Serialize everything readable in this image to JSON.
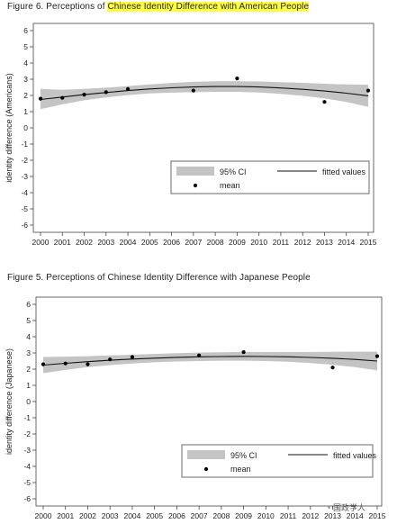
{
  "figures": [
    {
      "label": "Figure 6.",
      "title_plain": "Perceptions of",
      "title_highlight": "Chinese Identity Difference with American People",
      "chart_data": {
        "type": "scatter",
        "title": "Figure 6. Perceptions of Chinese Identity Difference with American People",
        "xlabel": "",
        "ylabel": "identity difference (Americans)",
        "xlim": [
          2000,
          2015
        ],
        "ylim": [
          -6,
          6
        ],
        "x_ticks": [
          2000,
          2001,
          2002,
          2003,
          2004,
          2005,
          2006,
          2007,
          2008,
          2009,
          2010,
          2011,
          2012,
          2013,
          2014,
          2015
        ],
        "y_ticks": [
          -6,
          -5,
          -4,
          -3,
          -2,
          -1,
          0,
          1,
          2,
          3,
          4,
          5,
          6
        ],
        "series": [
          {
            "name": "mean",
            "kind": "points",
            "x": [
              2000,
              2001,
              2002,
              2003,
              2004,
              2007,
              2009,
              2013,
              2015
            ],
            "y": [
              1.8,
              1.85,
              2.05,
              2.2,
              2.4,
              2.3,
              3.05,
              1.6,
              2.3
            ]
          },
          {
            "name": "fitted values",
            "kind": "line",
            "x": [
              2000,
              2001,
              2002,
              2003,
              2004,
              2005,
              2006,
              2007,
              2008,
              2009,
              2010,
              2011,
              2012,
              2013,
              2014,
              2015
            ],
            "y": [
              1.75,
              1.9,
              2.05,
              2.18,
              2.3,
              2.4,
              2.47,
              2.52,
              2.55,
              2.55,
              2.52,
              2.46,
              2.38,
              2.27,
              2.14,
              1.98
            ]
          },
          {
            "name": "95% CI",
            "kind": "band",
            "x": [
              2000,
              2001,
              2002,
              2003,
              2004,
              2005,
              2006,
              2007,
              2008,
              2009,
              2010,
              2011,
              2012,
              2013,
              2014,
              2015
            ],
            "lower": [
              1.15,
              1.45,
              1.7,
              1.88,
              2.02,
              2.12,
              2.17,
              2.2,
              2.22,
              2.22,
              2.18,
              2.1,
              1.98,
              1.82,
              1.6,
              1.3
            ],
            "upper": [
              2.4,
              2.35,
              2.4,
              2.48,
              2.58,
              2.68,
              2.77,
              2.84,
              2.88,
              2.88,
              2.86,
              2.82,
              2.78,
              2.72,
              2.68,
              2.66
            ]
          }
        ],
        "legend": {
          "position": "bottom-right",
          "items": [
            {
              "label": "95% CI",
              "kind": "band"
            },
            {
              "label": "fitted values",
              "kind": "line"
            },
            {
              "label": "mean",
              "kind": "point"
            }
          ]
        },
        "grid": false,
        "colors": {
          "band": "#c4c4c4",
          "line": "#111111",
          "point": "#000000"
        }
      }
    },
    {
      "label": "Figure 5.",
      "title_plain": "Perceptions of Chinese Identity Difference with Japanese People",
      "title_highlight": "",
      "chart_data": {
        "type": "scatter",
        "title": "Figure 5. Perceptions of Chinese Identity Difference with Japanese People",
        "xlabel": "",
        "ylabel": "identity difference (Japanese)",
        "xlim": [
          2000,
          2015
        ],
        "ylim": [
          -6,
          6
        ],
        "x_ticks": [
          2000,
          2001,
          2002,
          2003,
          2004,
          2005,
          2006,
          2007,
          2008,
          2009,
          2010,
          2011,
          2012,
          2013,
          2014,
          2015
        ],
        "y_ticks": [
          -6,
          -5,
          -4,
          -3,
          -2,
          -1,
          0,
          1,
          2,
          3,
          4,
          5,
          6
        ],
        "series": [
          {
            "name": "mean",
            "kind": "points",
            "x": [
              2000,
              2001,
              2002,
              2003,
              2004,
              2007,
              2009,
              2013,
              2015
            ],
            "y": [
              2.3,
              2.35,
              2.3,
              2.6,
              2.75,
              2.85,
              3.05,
              2.1,
              2.8
            ]
          },
          {
            "name": "fitted values",
            "kind": "line",
            "x": [
              2000,
              2001,
              2002,
              2003,
              2004,
              2005,
              2006,
              2007,
              2008,
              2009,
              2010,
              2011,
              2012,
              2013,
              2014,
              2015
            ],
            "y": [
              2.25,
              2.36,
              2.46,
              2.55,
              2.62,
              2.68,
              2.73,
              2.76,
              2.78,
              2.79,
              2.78,
              2.76,
              2.72,
              2.67,
              2.6,
              2.5
            ]
          },
          {
            "name": "95% CI",
            "kind": "band",
            "x": [
              2000,
              2001,
              2002,
              2003,
              2004,
              2005,
              2006,
              2007,
              2008,
              2009,
              2010,
              2011,
              2012,
              2013,
              2014,
              2015
            ],
            "lower": [
              1.75,
              1.95,
              2.12,
              2.25,
              2.35,
              2.42,
              2.47,
              2.5,
              2.52,
              2.52,
              2.5,
              2.46,
              2.38,
              2.27,
              2.12,
              1.92
            ],
            "upper": [
              2.75,
              2.77,
              2.8,
              2.85,
              2.89,
              2.94,
              2.99,
              3.02,
              3.04,
              3.06,
              3.06,
              3.06,
              3.06,
              3.07,
              3.08,
              3.08
            ]
          }
        ],
        "legend": {
          "position": "bottom-right",
          "items": [
            {
              "label": "95% CI",
              "kind": "band"
            },
            {
              "label": "fitted values",
              "kind": "line"
            },
            {
              "label": "mean",
              "kind": "point"
            }
          ]
        },
        "grid": false,
        "colors": {
          "band": "#c4c4c4",
          "line": "#111111",
          "point": "#000000"
        }
      }
    }
  ],
  "watermark": "国政学人"
}
